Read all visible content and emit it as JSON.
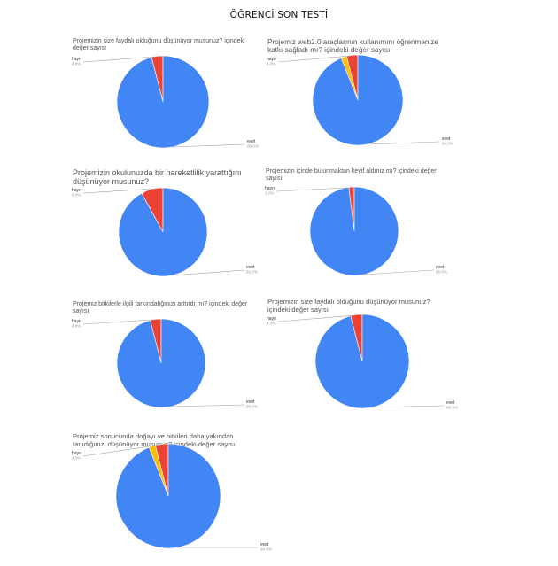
{
  "page": {
    "title": "ÖĞRENCİ SON TESTİ"
  },
  "colors": {
    "evet": "#4285f4",
    "hayir": "#ea4335",
    "other": "#fbbc04"
  },
  "chart_data": [
    {
      "type": "pie",
      "title": "Projemizin size faydalı olduğunu düşünüyor musunuz? içindeki değer sayısı",
      "slices": [
        {
          "label": "hayır",
          "value": 4.0,
          "pct": "4.0%"
        },
        {
          "label": "evet",
          "value": 96.0,
          "pct": "96.0%"
        }
      ]
    },
    {
      "type": "pie",
      "title": "Projemiz web2.0 araçlarının kullanımını öğrenmenize katkı sağladı mı? içindeki değer sayısı",
      "slices": [
        {
          "label": "hayır",
          "value": 4.0,
          "pct": "4.0%"
        },
        {
          "label": "",
          "value": 2.0,
          "pct": ""
        },
        {
          "label": "evet",
          "value": 94.0,
          "pct": "94.0%"
        }
      ]
    },
    {
      "type": "pie",
      "title": "Projemizin okulunuzda bir hareketlilik yarattığını düşünüyor musunuz?",
      "slices": [
        {
          "label": "hayır",
          "value": 8.0,
          "pct": "8.0%"
        },
        {
          "label": "evet",
          "value": 92.0,
          "pct": "92.0%"
        }
      ]
    },
    {
      "type": "pie",
      "title": "Projemizin içinde bulunmaktan keyif aldınız mı? içindeki değer sayısı",
      "slices": [
        {
          "label": "hayır",
          "value": 2.0,
          "pct": "2.0%"
        },
        {
          "label": "evet",
          "value": 98.0,
          "pct": "98.0%"
        }
      ]
    },
    {
      "type": "pie",
      "title": "Projemiz bitkilerle ilgili farkındalığınızı arttırdı mı? içindeki değer sayısı",
      "slices": [
        {
          "label": "hayır",
          "value": 4.0,
          "pct": "4.0%"
        },
        {
          "label": "evet",
          "value": 96.0,
          "pct": "96.0%"
        }
      ]
    },
    {
      "type": "pie",
      "title": "Projemizin size faydalı olduğunu düşünüyor musunuz? içindeki değer sayısı",
      "slices": [
        {
          "label": "hayır",
          "value": 4.0,
          "pct": "4.0%"
        },
        {
          "label": "evet",
          "value": 96.0,
          "pct": "96.0%"
        }
      ]
    },
    {
      "type": "pie",
      "title": "Projemiz sonucunda doğayı ve bitkileri daha yakından tanıdığınızı düşünüyor musunuz? içindeki değer sayısı",
      "slices": [
        {
          "label": "hayır",
          "value": 4.0,
          "pct": "4.0%"
        },
        {
          "label": "",
          "value": 2.0,
          "pct": ""
        },
        {
          "label": "evet",
          "value": 94.0,
          "pct": "94.0%"
        }
      ]
    }
  ]
}
